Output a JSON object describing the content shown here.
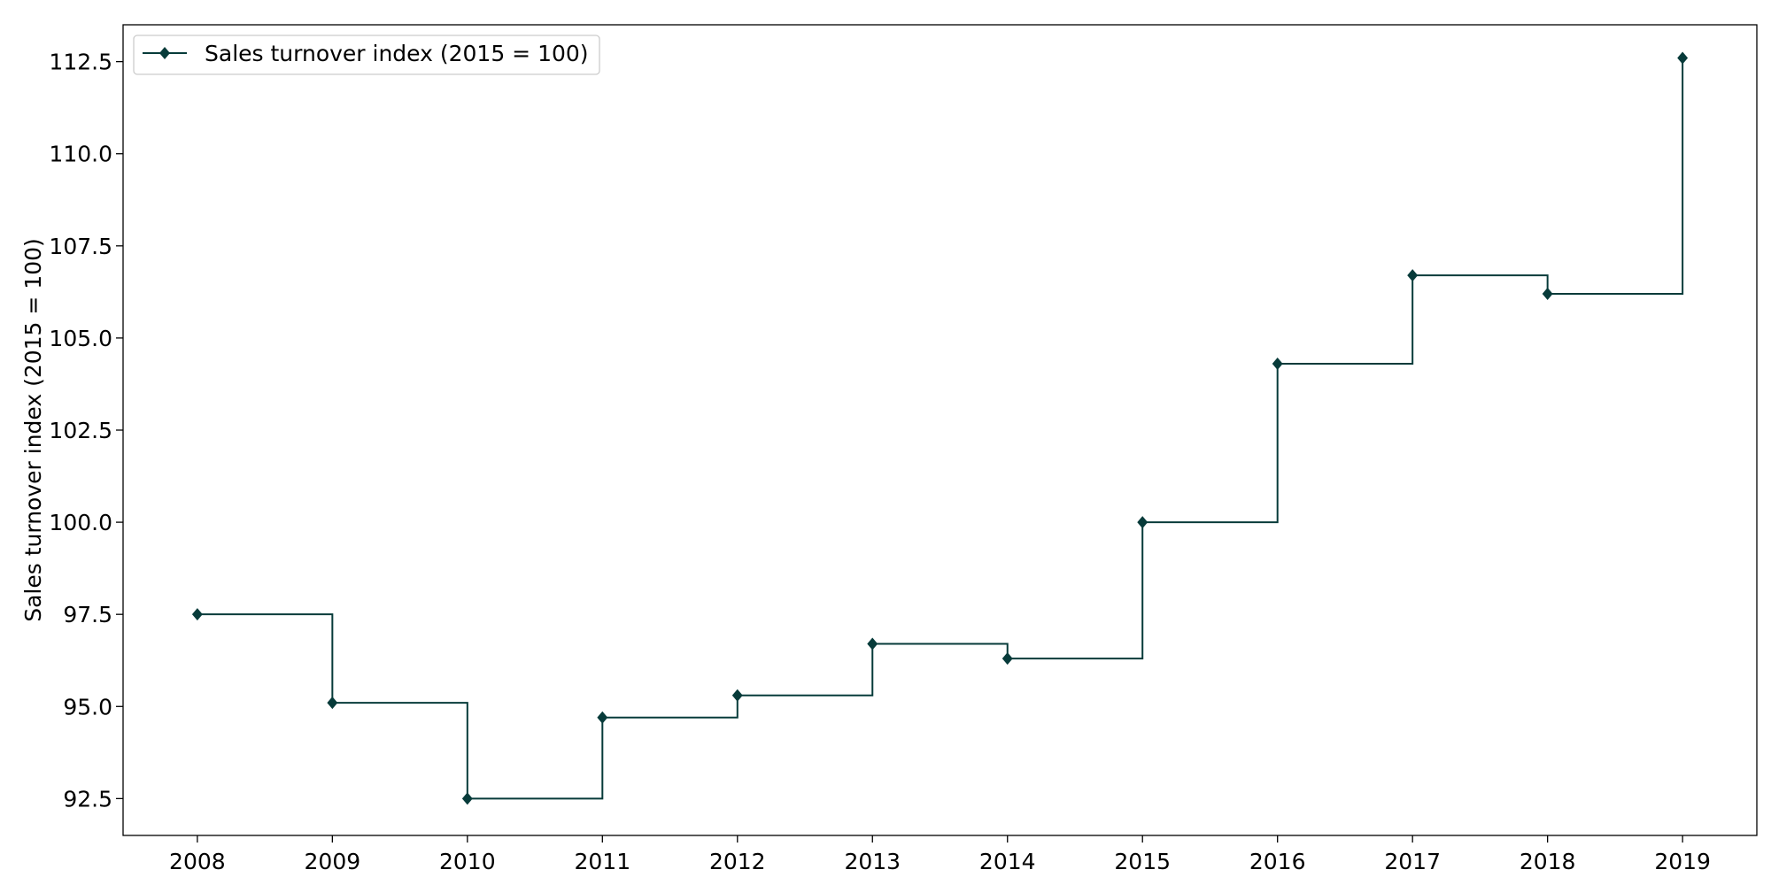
{
  "chart_data": {
    "type": "line",
    "step": "post",
    "title": "",
    "xlabel": "",
    "ylabel": "Sales turnover index (2015 = 100)",
    "x": [
      2008,
      2009,
      2010,
      2011,
      2012,
      2013,
      2014,
      2015,
      2016,
      2017,
      2018,
      2019
    ],
    "xticks": [
      "2008",
      "2009",
      "2010",
      "2011",
      "2012",
      "2013",
      "2014",
      "2015",
      "2016",
      "2017",
      "2018",
      "2019"
    ],
    "xlim": [
      2007.45,
      2019.55
    ],
    "ylim": [
      91.5,
      113.5
    ],
    "yticks": [
      92.5,
      95.0,
      97.5,
      100.0,
      102.5,
      105.0,
      107.5,
      110.0,
      112.5
    ],
    "ytick_labels": [
      "92.5",
      "95.0",
      "97.5",
      "100.0",
      "102.5",
      "105.0",
      "107.5",
      "110.0",
      "112.5"
    ],
    "series": [
      {
        "name": "Sales turnover index (2015 = 100)",
        "color": "#073b3a",
        "marker": "diamond",
        "values": [
          97.5,
          95.1,
          92.5,
          94.7,
          95.3,
          96.7,
          96.3,
          100.0,
          104.3,
          106.7,
          106.2,
          112.6
        ]
      }
    ],
    "grid": false,
    "legend": "top-left"
  }
}
